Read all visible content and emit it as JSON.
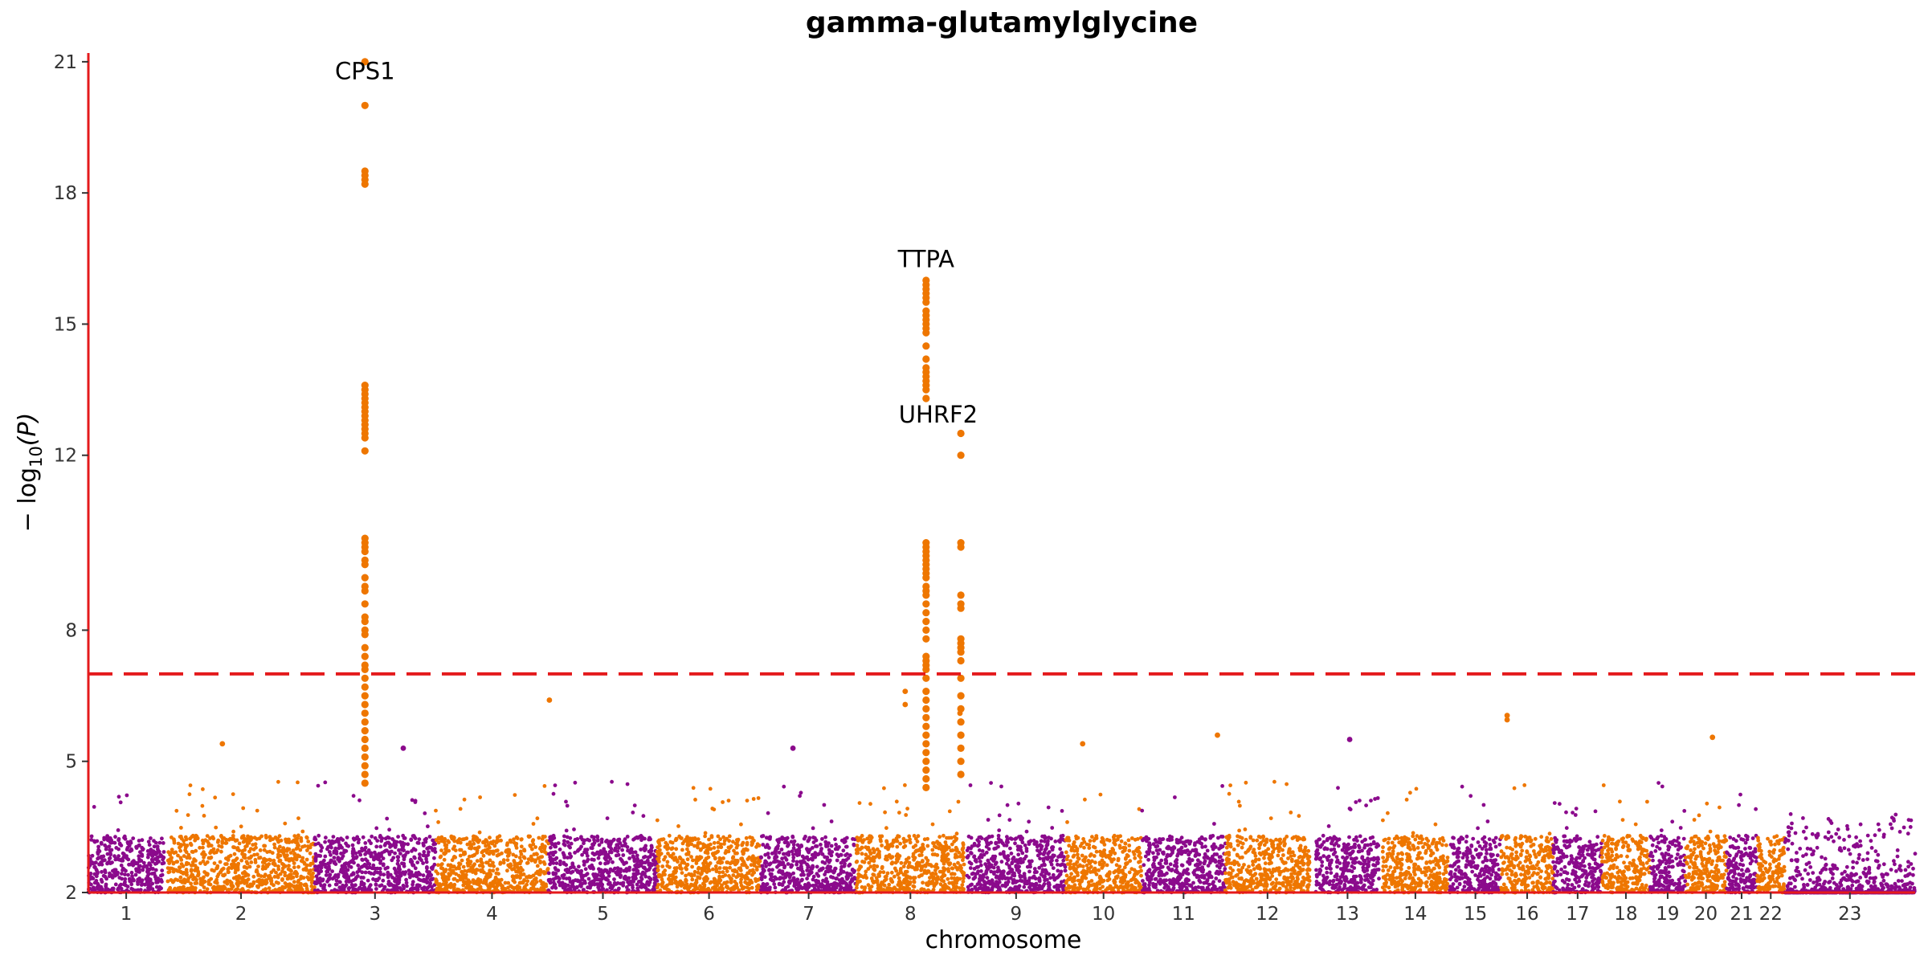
{
  "chart_data": {
    "type": "scatter",
    "subtype": "manhattan",
    "title": "gamma-glutamylglycine",
    "xlabel": "chromosome",
    "ylabel_main": "− log",
    "ylabel_sub": "10",
    "ylabel_tail": "(P)",
    "ylim": [
      2,
      21.2
    ],
    "yticks": [
      2,
      5,
      8,
      12,
      15,
      18,
      21
    ],
    "threshold": 7.0,
    "grid": false,
    "colors": {
      "odd_chromosome": "#8B0A8C",
      "even_chromosome": "#EE7600",
      "threshold_line": "#E41A1C",
      "axis_line": "#E41A1C"
    },
    "chromosomes": [
      {
        "label": "1",
        "start": 0,
        "end": 87
      },
      {
        "label": "2",
        "start": 91,
        "end": 260
      },
      {
        "label": "3",
        "start": 260,
        "end": 399
      },
      {
        "label": "4",
        "start": 399,
        "end": 529
      },
      {
        "label": "5",
        "start": 529,
        "end": 654
      },
      {
        "label": "6",
        "start": 654,
        "end": 773
      },
      {
        "label": "7",
        "start": 773,
        "end": 883
      },
      {
        "label": "8",
        "start": 883,
        "end": 1007
      },
      {
        "label": "9",
        "start": 1010,
        "end": 1123
      },
      {
        "label": "10",
        "start": 1123,
        "end": 1211
      },
      {
        "label": "11",
        "start": 1211,
        "end": 1307
      },
      {
        "label": "12",
        "start": 1307,
        "end": 1404
      },
      {
        "label": "13",
        "start": 1411,
        "end": 1484
      },
      {
        "label": "14",
        "start": 1488,
        "end": 1563
      },
      {
        "label": "15",
        "start": 1565,
        "end": 1624
      },
      {
        "label": "16",
        "start": 1624,
        "end": 1684
      },
      {
        "label": "17",
        "start": 1684,
        "end": 1740
      },
      {
        "label": "18",
        "start": 1740,
        "end": 1795
      },
      {
        "label": "19",
        "start": 1795,
        "end": 1836
      },
      {
        "label": "20",
        "start": 1836,
        "end": 1883
      },
      {
        "label": "21",
        "start": 1883,
        "end": 1918
      },
      {
        "label": "22",
        "start": 1918,
        "end": 1950
      },
      {
        "label": "23",
        "start": 1950,
        "end": 2100
      }
    ],
    "peaks": [
      {
        "chrom": "2",
        "pos": 318,
        "values": [
          21.0,
          20.0,
          18.5,
          18.4,
          18.3,
          18.2,
          13.6,
          13.5,
          13.4,
          13.3,
          13.2,
          13.1,
          13.0,
          12.9,
          12.8,
          12.7,
          12.6,
          12.5,
          12.4,
          12.1,
          10.1,
          10.0,
          9.9,
          9.8,
          9.6,
          9.5,
          9.2,
          9.0,
          8.9,
          8.6,
          8.3,
          8.2,
          8.0,
          7.9,
          7.6,
          7.4,
          7.2,
          7.1,
          6.9,
          6.7,
          6.5,
          6.3,
          6.1,
          5.9,
          5.7,
          5.5,
          5.3,
          5.1,
          4.9,
          4.7,
          4.5
        ]
      },
      {
        "chrom": "8",
        "pos": 963,
        "values": [
          16.0,
          15.9,
          15.8,
          15.7,
          15.6,
          15.5,
          15.3,
          15.2,
          15.1,
          15.0,
          14.9,
          14.8,
          14.5,
          14.2,
          14.0,
          13.9,
          13.8,
          13.7,
          13.6,
          13.5,
          13.3,
          10.0,
          9.9,
          9.8,
          9.7,
          9.6,
          9.5,
          9.4,
          9.3,
          9.2,
          9.0,
          8.9,
          8.8,
          8.6,
          8.4,
          8.2,
          8.0,
          7.8,
          7.4,
          7.3,
          7.2,
          7.1,
          6.9,
          6.6,
          6.4,
          6.2,
          6.0,
          5.8,
          5.6,
          5.4,
          5.2,
          5.0,
          4.8,
          4.6,
          4.4
        ]
      },
      {
        "chrom": "8",
        "pos": 1003,
        "values": [
          12.5,
          12.0,
          10.0,
          9.9,
          8.8,
          8.6,
          8.5,
          7.8,
          7.7,
          7.6,
          7.5,
          7.3,
          6.9,
          6.5,
          6.2,
          5.9,
          5.6,
          5.3,
          5.0,
          4.7
        ]
      }
    ],
    "annotations": [
      {
        "text": "CPS1",
        "x": 318,
        "y": 20.6
      },
      {
        "text": "TTPA",
        "x": 963,
        "y": 16.3
      },
      {
        "text": "UHRF2",
        "x": 977,
        "y": 12.75
      }
    ],
    "notable_points": [
      {
        "chrom": "2",
        "x": 154,
        "y": 5.4
      },
      {
        "chrom": "4",
        "x": 530,
        "y": 6.4
      },
      {
        "chrom": "8",
        "x": 939,
        "y": 6.6
      },
      {
        "chrom": "8",
        "x": 939,
        "y": 6.3
      },
      {
        "chrom": "8",
        "x": 1002,
        "y": 6.1
      },
      {
        "chrom": "10",
        "x": 1143,
        "y": 5.4
      },
      {
        "chrom": "12",
        "x": 1298,
        "y": 5.6
      },
      {
        "chrom": "16",
        "x": 1631,
        "y": 6.05
      },
      {
        "chrom": "16",
        "x": 1631,
        "y": 5.95
      },
      {
        "chrom": "20",
        "x": 1867,
        "y": 5.55
      },
      {
        "chrom": "13",
        "x": 1450,
        "y": 5.5
      },
      {
        "chrom": "3",
        "x": 362,
        "y": 5.3
      },
      {
        "chrom": "7",
        "x": 810,
        "y": 5.3
      }
    ]
  }
}
